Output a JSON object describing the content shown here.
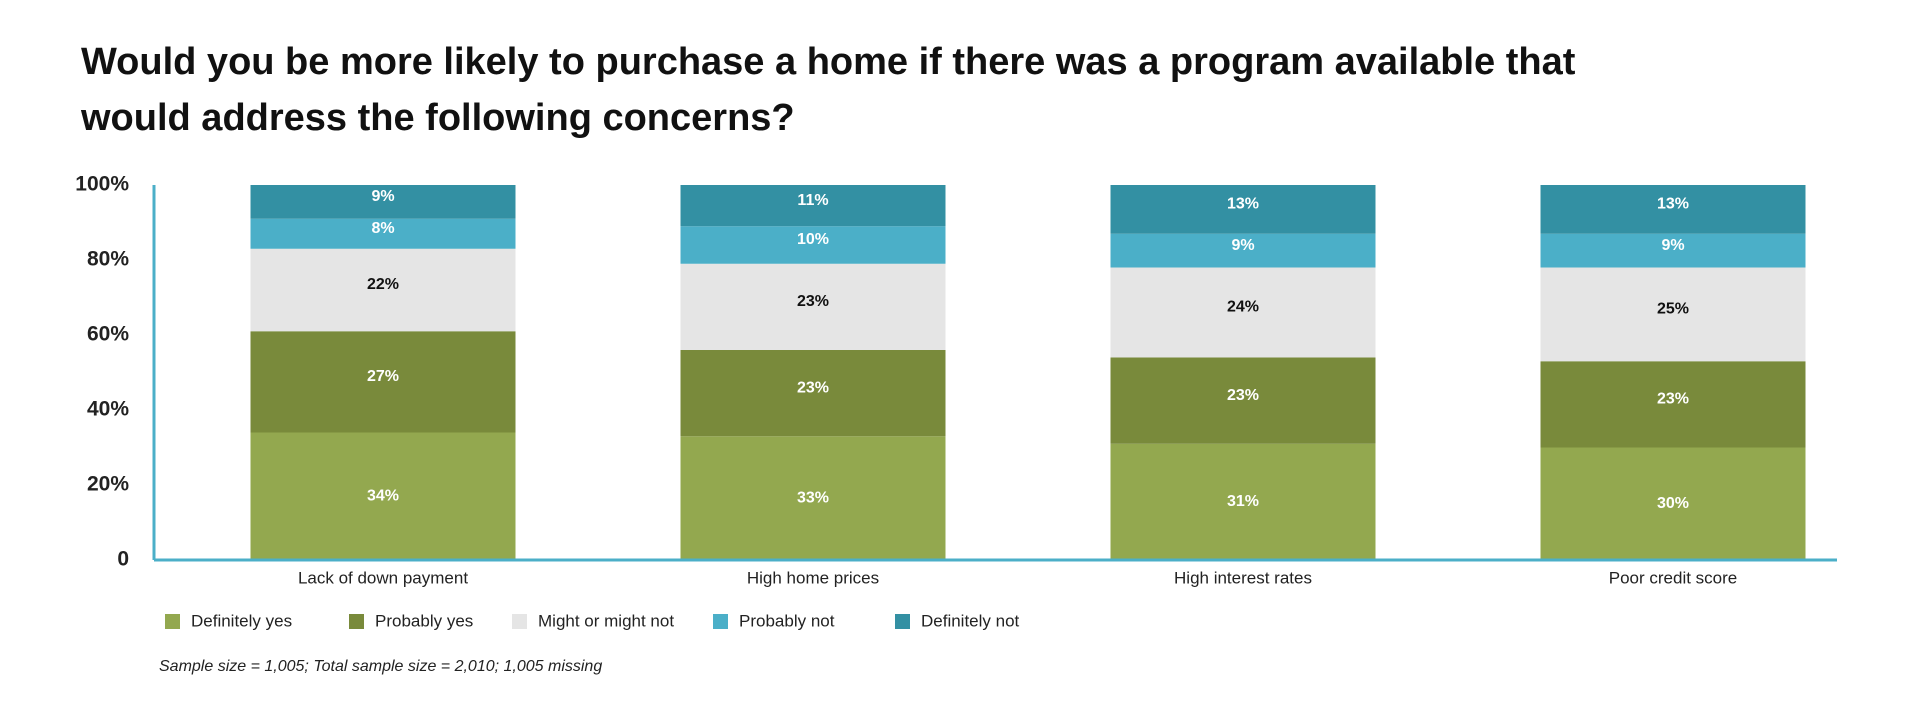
{
  "chart_data": {
    "type": "stacked_bar",
    "title": "Would you be more likely to purchase a home if there was a program available that would address the following concerns?",
    "categories": [
      "Lack of down payment",
      "High home prices",
      "High interest rates",
      "Poor credit score"
    ],
    "series": [
      {
        "name": "Definitely yes",
        "color": "#93a84f",
        "label_color": "#ffffff",
        "values": [
          34,
          33,
          31,
          30
        ],
        "value_labels": [
          "34%",
          "33%",
          "31%",
          "30%"
        ]
      },
      {
        "name": "Probably yes",
        "color": "#798a3b",
        "label_color": "#ffffff",
        "values": [
          27,
          23,
          23,
          23
        ],
        "value_labels": [
          "27%",
          "23%",
          "23%",
          "23%"
        ]
      },
      {
        "name": "Might or might not",
        "color": "#e5e5e5",
        "label_color": "#111111",
        "values": [
          22,
          23,
          24,
          25
        ],
        "value_labels": [
          "22%",
          "23%",
          "24%",
          "25%"
        ]
      },
      {
        "name": "Probably not",
        "color": "#4bafc8",
        "label_color": "#ffffff",
        "values": [
          8,
          10,
          9,
          9
        ],
        "value_labels": [
          "8%",
          "10%",
          "9%",
          "9%"
        ]
      },
      {
        "name": "Definitely not",
        "color": "#3390a3",
        "label_color": "#ffffff",
        "values": [
          9,
          11,
          13,
          13
        ],
        "value_labels": [
          "9%",
          "11%",
          "13%",
          "13%"
        ]
      }
    ],
    "ylim": [
      0,
      100
    ],
    "yticks": [
      0,
      {
        "value": 20,
        "label": "20%"
      },
      {
        "value": 40,
        "label": "40%"
      },
      {
        "value": 60,
        "label": "60%"
      },
      {
        "value": 80,
        "label": "80%"
      },
      {
        "value": 100,
        "label": "100%"
      }
    ],
    "axis_color": "#4bafc8",
    "footnote": "Sample size = 1,005; Total sample size = 2,010; 1,005 missing"
  }
}
